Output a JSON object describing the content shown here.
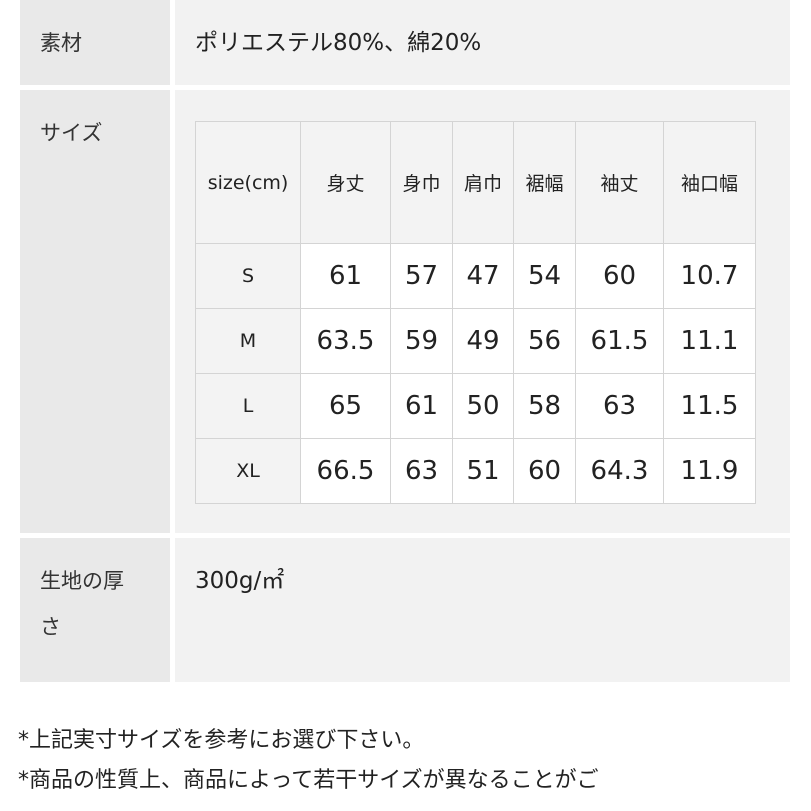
{
  "rows": {
    "material": {
      "label": "素材",
      "value": "ポリエステル80%、綿20%"
    },
    "size": {
      "label": "サイズ"
    },
    "thickness": {
      "label_line1": "生地の厚",
      "label_line2": "さ",
      "value": "300g/㎡"
    }
  },
  "size_table": {
    "headers": [
      "size(cm)",
      "身丈",
      "身巾",
      "肩巾",
      "裾幅",
      "袖丈",
      "袖口幅"
    ],
    "rows": [
      [
        "S",
        "61",
        "57",
        "47",
        "54",
        "60",
        "10.7"
      ],
      [
        "M",
        "63.5",
        "59",
        "49",
        "56",
        "61.5",
        "11.1"
      ],
      [
        "L",
        "65",
        "61",
        "50",
        "58",
        "63",
        "11.5"
      ],
      [
        "XL",
        "66.5",
        "63",
        "51",
        "60",
        "64.3",
        "11.9"
      ]
    ]
  },
  "notes": [
    "*上記実寸サイズを参考にお選び下さい。",
    "*商品の性質上、商品によって若干サイズが異なることがご"
  ]
}
